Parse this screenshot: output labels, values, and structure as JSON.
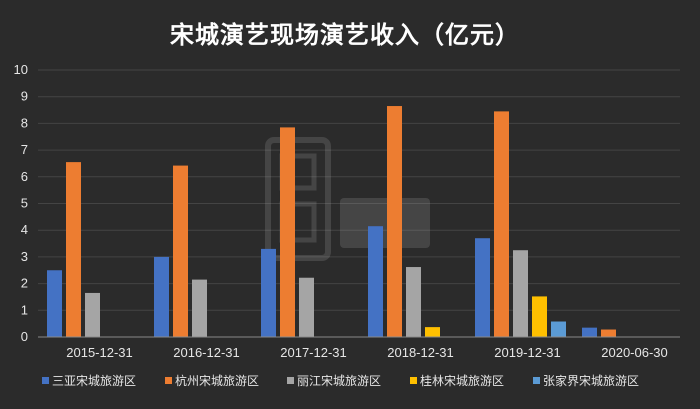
{
  "chart_data": {
    "type": "bar",
    "title": "宋城演艺现场演艺收入（亿元）",
    "xlabel": "",
    "ylabel": "",
    "ylim": [
      0,
      10
    ],
    "yticks": [
      0,
      1,
      2,
      3,
      4,
      5,
      6,
      7,
      8,
      9,
      10
    ],
    "grid": true,
    "legend": "bottom",
    "categories": [
      "2015-12-31",
      "2016-12-31",
      "2017-12-31",
      "2018-12-31",
      "2019-12-31",
      "2020-06-30"
    ],
    "series": [
      {
        "name": "三亚宋城旅游区",
        "color": "#4472c4",
        "values": [
          2.5,
          3.0,
          3.3,
          4.15,
          3.7,
          0.35
        ]
      },
      {
        "name": "杭州宋城旅游区",
        "color": "#ed7d31",
        "values": [
          6.55,
          6.42,
          7.85,
          8.65,
          8.45,
          0.28
        ]
      },
      {
        "name": "丽江宋城旅游区",
        "color": "#a5a5a5",
        "values": [
          1.65,
          2.15,
          2.22,
          2.62,
          3.25,
          null
        ]
      },
      {
        "name": "桂林宋城旅游区",
        "color": "#ffc000",
        "values": [
          null,
          null,
          null,
          0.37,
          1.52,
          null
        ]
      },
      {
        "name": "张家界宋城旅游区",
        "color": "#5b9bd5",
        "values": [
          null,
          null,
          null,
          null,
          0.58,
          null
        ]
      }
    ]
  }
}
